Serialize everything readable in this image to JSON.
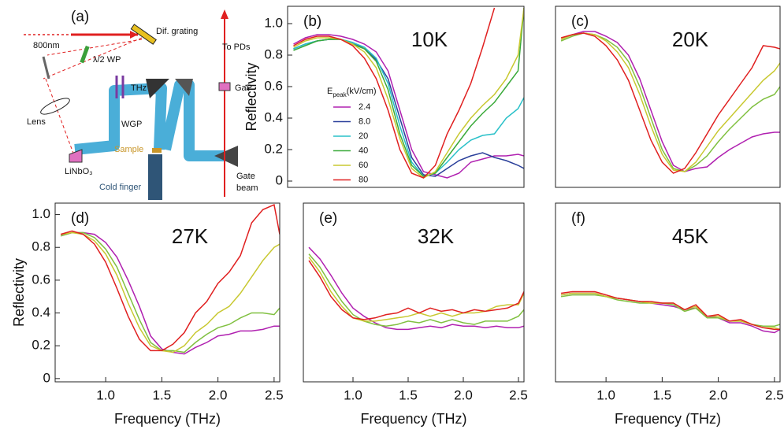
{
  "chart_data": [
    {
      "type": "diagram",
      "labels": [
        "(a)",
        "800nm",
        "Dif. grating",
        "λ/2 WP",
        "To PDs",
        "THz",
        "GaP",
        "Lens",
        "WGP",
        "Sample",
        "LiNbO₃",
        "Cold finger",
        "Gate",
        "beam"
      ]
    },
    {
      "type": "line",
      "panel_label": "(b)",
      "annotation": "10K",
      "y_label": "Reflectivity",
      "legend_title": {
        "symbol": "E",
        "subscript": "peak",
        "unit": "(kV/cm)"
      },
      "x": [
        0.6,
        0.7,
        0.8,
        0.9,
        1.0,
        1.1,
        1.2,
        1.3,
        1.4,
        1.5,
        1.6,
        1.7,
        1.8,
        1.9,
        2.0,
        2.1,
        2.2,
        2.3,
        2.4,
        2.5,
        2.55
      ],
      "xlim": [
        0.55,
        2.55
      ],
      "ylim": [
        -0.04,
        1.11
      ],
      "yticks": [
        0,
        0.2,
        0.4,
        0.6,
        0.8,
        {
          "value": 1,
          "label": "1.0"
        }
      ],
      "series": [
        {
          "name": "2.4",
          "color": "#b020b0",
          "values": [
            0.87,
            0.91,
            0.93,
            0.93,
            0.92,
            0.9,
            0.87,
            0.82,
            0.7,
            0.45,
            0.2,
            0.06,
            0.04,
            0.02,
            0.05,
            0.12,
            0.14,
            0.16,
            0.16,
            0.17,
            0.16
          ]
        },
        {
          "name": "8.0",
          "color": "#2a3f9a",
          "values": [
            0.84,
            0.87,
            0.89,
            0.9,
            0.9,
            0.88,
            0.84,
            0.77,
            0.65,
            0.4,
            0.15,
            0.04,
            0.03,
            0.08,
            0.13,
            0.16,
            0.18,
            0.15,
            0.13,
            0.1,
            0.08
          ]
        },
        {
          "name": "20",
          "color": "#28c0c8",
          "values": [
            0.84,
            0.87,
            0.89,
            0.9,
            0.9,
            0.88,
            0.85,
            0.78,
            0.62,
            0.35,
            0.12,
            0.03,
            0.05,
            0.12,
            0.2,
            0.26,
            0.29,
            0.3,
            0.4,
            0.46,
            0.53
          ]
        },
        {
          "name": "40",
          "color": "#3aaa3a",
          "values": [
            0.83,
            0.86,
            0.89,
            0.9,
            0.9,
            0.87,
            0.84,
            0.76,
            0.58,
            0.3,
            0.1,
            0.03,
            0.05,
            0.15,
            0.25,
            0.35,
            0.43,
            0.5,
            0.6,
            0.7,
            1.1
          ]
        },
        {
          "name": "60",
          "color": "#c8c830",
          "values": [
            0.85,
            0.89,
            0.91,
            0.91,
            0.9,
            0.87,
            0.82,
            0.72,
            0.52,
            0.27,
            0.08,
            0.02,
            0.06,
            0.18,
            0.3,
            0.4,
            0.48,
            0.55,
            0.65,
            0.8,
            1.1
          ]
        },
        {
          "name": "80",
          "color": "#e02020",
          "values": [
            0.86,
            0.9,
            0.92,
            0.92,
            0.9,
            0.86,
            0.78,
            0.65,
            0.45,
            0.2,
            0.05,
            0.02,
            0.1,
            0.3,
            0.45,
            0.62,
            0.85,
            1.1,
            null,
            null,
            null
          ]
        }
      ]
    },
    {
      "type": "line",
      "panel_label": "(c)",
      "annotation": "20K",
      "x": [
        0.6,
        0.7,
        0.8,
        0.9,
        1.0,
        1.1,
        1.2,
        1.3,
        1.4,
        1.5,
        1.6,
        1.7,
        1.8,
        1.9,
        2.0,
        2.1,
        2.2,
        2.3,
        2.4,
        2.5,
        2.55
      ],
      "xlim": [
        0.55,
        2.55
      ],
      "ylim": [
        -0.04,
        1.11
      ],
      "series": [
        {
          "color": "#b020b0",
          "values": [
            0.9,
            0.93,
            0.95,
            0.95,
            0.92,
            0.88,
            0.8,
            0.65,
            0.45,
            0.25,
            0.1,
            0.06,
            0.08,
            0.09,
            0.15,
            0.2,
            0.24,
            0.28,
            0.3,
            0.31,
            0.31
          ]
        },
        {
          "color": "#80c040",
          "values": [
            0.89,
            0.92,
            0.94,
            0.93,
            0.9,
            0.85,
            0.76,
            0.6,
            0.4,
            0.2,
            0.08,
            0.06,
            0.1,
            0.16,
            0.25,
            0.33,
            0.4,
            0.47,
            0.52,
            0.55,
            0.6
          ]
        },
        {
          "color": "#c8c830",
          "values": [
            0.9,
            0.93,
            0.94,
            0.93,
            0.89,
            0.82,
            0.72,
            0.55,
            0.35,
            0.17,
            0.07,
            0.06,
            0.12,
            0.22,
            0.32,
            0.4,
            0.48,
            0.56,
            0.64,
            0.7,
            0.75
          ]
        },
        {
          "color": "#e02020",
          "values": [
            0.91,
            0.93,
            0.94,
            0.92,
            0.86,
            0.77,
            0.64,
            0.45,
            0.26,
            0.12,
            0.05,
            0.08,
            0.18,
            0.3,
            0.42,
            0.52,
            0.62,
            0.72,
            0.86,
            0.85,
            0.84
          ]
        }
      ]
    },
    {
      "type": "line",
      "panel_label": "(d)",
      "annotation": "27K",
      "y_label": "Reflectivity",
      "x_label": "Frequency (THz)",
      "x": [
        0.6,
        0.7,
        0.8,
        0.9,
        1.0,
        1.1,
        1.2,
        1.3,
        1.4,
        1.5,
        1.6,
        1.7,
        1.8,
        1.9,
        2.0,
        2.1,
        2.2,
        2.3,
        2.4,
        2.5,
        2.55
      ],
      "xlim": [
        0.55,
        2.55
      ],
      "ylim": [
        -0.02,
        1.07
      ],
      "xticks": [
        {
          "value": 1,
          "label": "1.0"
        },
        1.5,
        {
          "value": 2,
          "label": "2.0"
        },
        2.5
      ],
      "yticks": [
        0,
        0.2,
        0.4,
        0.6,
        0.8,
        {
          "value": 1,
          "label": "1.0"
        }
      ],
      "series": [
        {
          "color": "#b020b0",
          "values": [
            0.87,
            0.89,
            0.89,
            0.88,
            0.83,
            0.74,
            0.6,
            0.44,
            0.26,
            0.18,
            0.16,
            0.15,
            0.19,
            0.22,
            0.26,
            0.27,
            0.29,
            0.29,
            0.3,
            0.32,
            0.32
          ]
        },
        {
          "color": "#80c040",
          "values": [
            0.87,
            0.89,
            0.89,
            0.86,
            0.79,
            0.68,
            0.52,
            0.36,
            0.22,
            0.17,
            0.17,
            0.16,
            0.22,
            0.27,
            0.31,
            0.33,
            0.37,
            0.4,
            0.4,
            0.39,
            0.43
          ]
        },
        {
          "color": "#c8c830",
          "values": [
            0.88,
            0.89,
            0.88,
            0.84,
            0.76,
            0.63,
            0.46,
            0.31,
            0.2,
            0.17,
            0.16,
            0.2,
            0.28,
            0.33,
            0.4,
            0.44,
            0.52,
            0.62,
            0.72,
            0.8,
            0.82
          ]
        },
        {
          "color": "#e02020",
          "values": [
            0.88,
            0.9,
            0.88,
            0.82,
            0.71,
            0.55,
            0.38,
            0.24,
            0.17,
            0.17,
            0.21,
            0.28,
            0.4,
            0.47,
            0.58,
            0.65,
            0.75,
            0.95,
            1.03,
            1.06,
            0.88
          ]
        }
      ]
    },
    {
      "type": "line",
      "panel_label": "(e)",
      "annotation": "32K",
      "x_label": "Frequency (THz)",
      "x": [
        0.6,
        0.7,
        0.8,
        0.9,
        1.0,
        1.1,
        1.2,
        1.3,
        1.4,
        1.5,
        1.6,
        1.7,
        1.8,
        1.9,
        2.0,
        2.1,
        2.2,
        2.3,
        2.4,
        2.5,
        2.55
      ],
      "xlim": [
        0.55,
        2.55
      ],
      "ylim": [
        -0.02,
        1.07
      ],
      "xticks": [
        {
          "value": 1,
          "label": "1.0"
        },
        1.5,
        {
          "value": 2,
          "label": "2.0"
        },
        2.5
      ],
      "series": [
        {
          "color": "#b020b0",
          "values": [
            0.8,
            0.73,
            0.63,
            0.52,
            0.43,
            0.38,
            0.34,
            0.31,
            0.3,
            0.3,
            0.31,
            0.32,
            0.31,
            0.33,
            0.32,
            0.32,
            0.31,
            0.32,
            0.31,
            0.31,
            0.32
          ]
        },
        {
          "color": "#80c040",
          "values": [
            0.76,
            0.68,
            0.57,
            0.47,
            0.39,
            0.35,
            0.33,
            0.32,
            0.33,
            0.35,
            0.34,
            0.36,
            0.34,
            0.36,
            0.34,
            0.33,
            0.35,
            0.35,
            0.35,
            0.38,
            0.42
          ]
        },
        {
          "color": "#c8c830",
          "values": [
            0.74,
            0.65,
            0.53,
            0.44,
            0.37,
            0.35,
            0.35,
            0.36,
            0.37,
            0.38,
            0.4,
            0.38,
            0.4,
            0.38,
            0.4,
            0.4,
            0.41,
            0.44,
            0.45,
            0.45,
            0.52
          ]
        },
        {
          "color": "#e02020",
          "values": [
            0.72,
            0.62,
            0.5,
            0.42,
            0.37,
            0.36,
            0.37,
            0.39,
            0.4,
            0.43,
            0.4,
            0.43,
            0.41,
            0.42,
            0.4,
            0.42,
            0.41,
            0.42,
            0.43,
            0.46,
            0.53
          ]
        }
      ]
    },
    {
      "type": "line",
      "panel_label": "(f)",
      "annotation": "45K",
      "x_label": "Frequency (THz)",
      "x": [
        0.6,
        0.7,
        0.8,
        0.9,
        1.0,
        1.1,
        1.2,
        1.3,
        1.4,
        1.5,
        1.6,
        1.7,
        1.8,
        1.9,
        2.0,
        2.1,
        2.2,
        2.3,
        2.4,
        2.5,
        2.55
      ],
      "xlim": [
        0.55,
        2.55
      ],
      "ylim": [
        -0.02,
        1.07
      ],
      "xticks": [
        {
          "value": 1,
          "label": "1.0"
        },
        1.5,
        {
          "value": 2,
          "label": "2.0"
        },
        2.5
      ],
      "series": [
        {
          "color": "#b020b0",
          "values": [
            0.51,
            0.52,
            0.52,
            0.52,
            0.5,
            0.49,
            0.48,
            0.47,
            0.46,
            0.45,
            0.44,
            0.42,
            0.43,
            0.38,
            0.37,
            0.34,
            0.34,
            0.32,
            0.29,
            0.28,
            0.3
          ]
        },
        {
          "color": "#80c040",
          "values": [
            0.5,
            0.51,
            0.51,
            0.51,
            0.5,
            0.48,
            0.47,
            0.46,
            0.46,
            0.46,
            0.45,
            0.41,
            0.43,
            0.37,
            0.37,
            0.35,
            0.35,
            0.33,
            0.32,
            0.32,
            0.33
          ]
        },
        {
          "color": "#c8c830",
          "values": [
            0.51,
            0.52,
            0.52,
            0.52,
            0.5,
            0.49,
            0.48,
            0.47,
            0.46,
            0.46,
            0.46,
            0.42,
            0.44,
            0.38,
            0.38,
            0.35,
            0.35,
            0.33,
            0.31,
            0.31,
            0.3
          ]
        },
        {
          "color": "#e02020",
          "values": [
            0.52,
            0.53,
            0.53,
            0.53,
            0.51,
            0.49,
            0.48,
            0.47,
            0.47,
            0.46,
            0.46,
            0.42,
            0.45,
            0.38,
            0.39,
            0.35,
            0.36,
            0.33,
            0.31,
            0.3,
            0.3
          ]
        }
      ]
    }
  ]
}
